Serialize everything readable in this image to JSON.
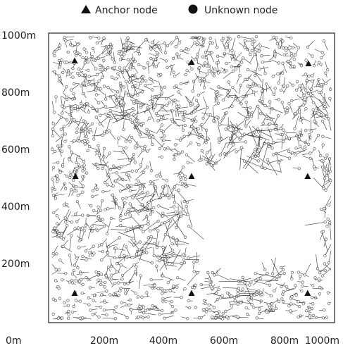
{
  "chart_data": {
    "type": "scatter",
    "title": "",
    "xlabel": "",
    "ylabel": "",
    "xlim": [
      0,
      1000
    ],
    "ylim": [
      0,
      1000
    ],
    "x_ticks": [
      "0m",
      "200m",
      "400m",
      "600m",
      "800m",
      "1000m"
    ],
    "y_ticks": [
      "200m",
      "400m",
      "600m",
      "800m",
      "1000m"
    ],
    "grid": false,
    "legend": {
      "placement": "top",
      "entries": [
        {
          "label": "Anchor node",
          "marker": "triangle"
        },
        {
          "label": "Unknown node",
          "marker": "circle"
        }
      ]
    },
    "hole_region": {
      "description_units": "m",
      "x_range": [
        440,
        960
      ],
      "y_range": [
        150,
        560
      ]
    },
    "series": [
      {
        "name": "Anchor node",
        "points": [
          {
            "x": 85,
            "y": 910
          },
          {
            "x": 500,
            "y": 905
          },
          {
            "x": 915,
            "y": 900
          },
          {
            "x": 88,
            "y": 505
          },
          {
            "x": 500,
            "y": 505
          },
          {
            "x": 912,
            "y": 505
          },
          {
            "x": 85,
            "y": 95
          },
          {
            "x": 500,
            "y": 95
          },
          {
            "x": 912,
            "y": 95
          }
        ]
      },
      {
        "name": "Unknown node",
        "count_estimate": 1500,
        "distribution": "uniform over field excluding central-right hole"
      }
    ]
  },
  "legend_labels": {
    "anchor": "Anchor node",
    "unknown": "Unknown node"
  }
}
